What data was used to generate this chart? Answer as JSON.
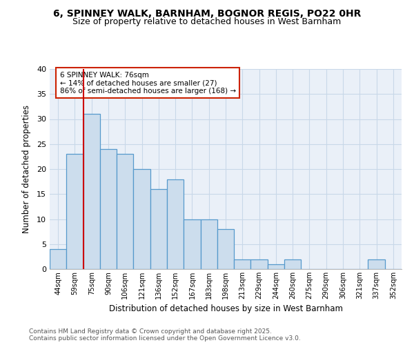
{
  "title1": "6, SPINNEY WALK, BARNHAM, BOGNOR REGIS, PO22 0HR",
  "title2": "Size of property relative to detached houses in West Barnham",
  "xlabel": "Distribution of detached houses by size in West Barnham",
  "ylabel": "Number of detached properties",
  "bins": [
    "44sqm",
    "59sqm",
    "75sqm",
    "90sqm",
    "106sqm",
    "121sqm",
    "136sqm",
    "152sqm",
    "167sqm",
    "183sqm",
    "198sqm",
    "213sqm",
    "229sqm",
    "244sqm",
    "260sqm",
    "275sqm",
    "290sqm",
    "306sqm",
    "321sqm",
    "337sqm",
    "352sqm"
  ],
  "values": [
    4,
    23,
    31,
    24,
    23,
    20,
    16,
    18,
    10,
    10,
    8,
    2,
    2,
    1,
    2,
    0,
    0,
    0,
    0,
    2,
    0
  ],
  "bar_color": "#ccdded",
  "bar_edge_color": "#5599cc",
  "vline_color": "#cc0000",
  "annotation_text": "6 SPINNEY WALK: 76sqm\n← 14% of detached houses are smaller (27)\n86% of semi-detached houses are larger (168) →",
  "annotation_box_edge": "#cc2200",
  "ylim": [
    0,
    40
  ],
  "yticks": [
    0,
    5,
    10,
    15,
    20,
    25,
    30,
    35,
    40
  ],
  "grid_color": "#c8d8e8",
  "bg_color": "#eaf0f8",
  "footer1": "Contains HM Land Registry data © Crown copyright and database right 2025.",
  "footer2": "Contains public sector information licensed under the Open Government Licence v3.0."
}
